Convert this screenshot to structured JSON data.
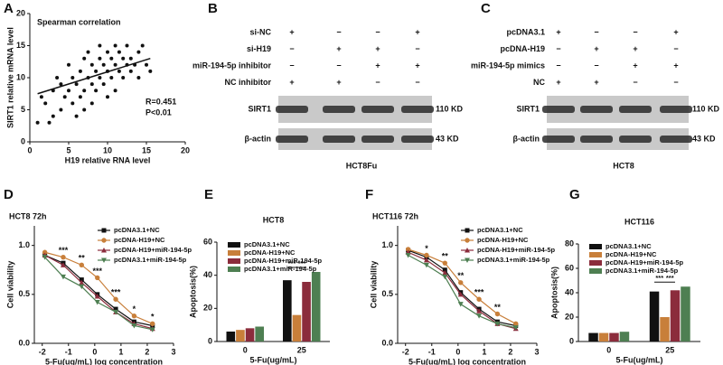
{
  "chart_data": [
    {
      "type": "scatter",
      "label": "A",
      "title": "Spearman correlation",
      "x_label": "H19 relative RNA level",
      "y_label": "SIRT1 relative mRNA level",
      "annotations": [
        "R=0.451",
        "P<0.01"
      ],
      "color": "#111111",
      "x": [
        1,
        1.5,
        2,
        2.5,
        3,
        3,
        3.5,
        4,
        4,
        4.5,
        5,
        5,
        5.5,
        5.5,
        6,
        6,
        6.5,
        6.5,
        7,
        7,
        7,
        7.5,
        7.5,
        8,
        8,
        8,
        8.5,
        8.5,
        9,
        9,
        9,
        9.5,
        9.5,
        10,
        10,
        10,
        10.5,
        10.5,
        11,
        11,
        11,
        11.5,
        11.5,
        12,
        12,
        12.5,
        12.5,
        13,
        13,
        13.5,
        14,
        14,
        14.5,
        15,
        15.5
      ],
      "y": [
        3,
        7,
        6,
        3,
        8,
        4,
        10,
        9,
        5,
        7,
        8,
        12,
        6,
        10,
        9,
        4,
        11,
        7,
        13,
        8,
        5,
        10,
        14,
        9,
        6,
        12,
        11,
        8,
        13,
        10,
        15,
        9,
        12,
        11,
        7,
        14,
        10,
        13,
        12,
        15,
        8,
        11,
        14,
        10,
        13,
        12,
        15,
        11,
        13,
        12,
        14,
        10,
        15,
        12,
        11
      ],
      "fit": {
        "x": [
          1,
          15.5
        ],
        "y": [
          7.5,
          13
        ]
      },
      "xlim": [
        0,
        20
      ],
      "xticks": [
        0,
        5,
        10,
        15,
        20
      ],
      "ylim": [
        0,
        20
      ],
      "yticks": [
        0,
        5,
        10,
        15,
        20
      ]
    },
    {
      "type": "line",
      "label": "D",
      "title": "HCT8 72h",
      "x_label": "5-Fu(ug/mL)  log concentration",
      "y_label": "Cell viability",
      "x": [
        -1.9,
        -1.2,
        -0.5,
        0.1,
        0.8,
        1.5,
        2.2
      ],
      "series": [
        {
          "name": "pcDNA3.1+NC",
          "color": "#111111",
          "values": [
            0.9,
            0.82,
            0.65,
            0.5,
            0.35,
            0.22,
            0.18
          ]
        },
        {
          "name": "pcDNA-H19+NC",
          "color": "#c87f3a",
          "values": [
            0.93,
            0.88,
            0.8,
            0.67,
            0.45,
            0.28,
            0.2
          ]
        },
        {
          "name": "pcDNA-H19+miR-194-5p",
          "color": "#8b2c3c",
          "values": [
            0.9,
            0.8,
            0.62,
            0.48,
            0.32,
            0.2,
            0.15
          ]
        },
        {
          "name": "pcDNA3.1+miR-194-5p",
          "color": "#4e7f52",
          "values": [
            0.88,
            0.68,
            0.58,
            0.42,
            0.32,
            0.18,
            0.14
          ]
        }
      ],
      "annotations": [
        {
          "x": -1.2,
          "text": "***"
        },
        {
          "x": -0.5,
          "text": "**"
        },
        {
          "x": 0.1,
          "text": "***"
        },
        {
          "x": 0.8,
          "text": "***"
        },
        {
          "x": 1.5,
          "text": "*"
        },
        {
          "x": 2.2,
          "text": "*"
        }
      ],
      "xlim": [
        -2.3,
        3
      ],
      "xticks": [
        -2,
        -1,
        0,
        1,
        2,
        3
      ],
      "ylim": [
        0,
        1.2
      ],
      "yticks": [
        {
          "value": 0,
          "label": "0.0"
        },
        {
          "value": 0.5,
          "label": "0.5"
        },
        {
          "value": 1,
          "label": "1.0"
        }
      ]
    },
    {
      "type": "bar",
      "label": "E",
      "title": "HCT8",
      "x_label": "5-Fu(ug/mL)",
      "y_label": "Apoptosis(%)",
      "categories": [
        "0",
        "25"
      ],
      "series": [
        {
          "name": "pcDNA3.1+NC",
          "color": "#111111",
          "values": [
            6,
            37
          ]
        },
        {
          "name": "pcDNA-H19+NC",
          "color": "#c87f3a",
          "values": [
            7,
            16
          ]
        },
        {
          "name": "pcDNA-H19+miR-194-5p",
          "color": "#8b2c3c",
          "values": [
            8,
            36
          ]
        },
        {
          "name": "pcDNA3.1+miR-194-5p",
          "color": "#4e7f52",
          "values": [
            9,
            42
          ]
        }
      ],
      "annotations": [
        "***",
        "***"
      ],
      "ylim": [
        0,
        60
      ],
      "yticks": [
        0,
        20,
        40,
        60
      ]
    },
    {
      "type": "line",
      "label": "F",
      "title": "HCT116 72h",
      "x_label": "5-Fu(ug/mL)  log concentration",
      "y_label": "Cell viability",
      "x": [
        -1.9,
        -1.2,
        -0.5,
        0.1,
        0.8,
        1.5,
        2.2
      ],
      "series": [
        {
          "name": "pcDNA3.1+NC",
          "color": "#111111",
          "values": [
            0.95,
            0.88,
            0.75,
            0.52,
            0.35,
            0.22,
            0.18
          ]
        },
        {
          "name": "pcDNA-H19+NC",
          "color": "#c87f3a",
          "values": [
            0.96,
            0.9,
            0.82,
            0.62,
            0.45,
            0.3,
            0.2
          ]
        },
        {
          "name": "pcDNA-H19+miR-194-5p",
          "color": "#8b2c3c",
          "values": [
            0.93,
            0.85,
            0.72,
            0.5,
            0.33,
            0.2,
            0.15
          ]
        },
        {
          "name": "pcDNA3.1+miR-194-5p",
          "color": "#4e7f52",
          "values": [
            0.9,
            0.8,
            0.68,
            0.4,
            0.28,
            0.2,
            0.16
          ]
        }
      ],
      "annotations": [
        {
          "x": -1.2,
          "text": "*"
        },
        {
          "x": -0.5,
          "text": "**"
        },
        {
          "x": 0.1,
          "text": "**"
        },
        {
          "x": 0.8,
          "text": "***"
        },
        {
          "x": 1.5,
          "text": "**"
        }
      ],
      "xlim": [
        -2.3,
        3
      ],
      "xticks": [
        -2,
        -1,
        0,
        1,
        2,
        3
      ],
      "ylim": [
        0,
        1.2
      ],
      "yticks": [
        {
          "value": 0,
          "label": "0.0"
        },
        {
          "value": 0.5,
          "label": "0.5"
        },
        {
          "value": 1,
          "label": "1.0"
        }
      ]
    },
    {
      "type": "bar",
      "label": "G",
      "title": "HCT116",
      "x_label": "5-Fu(ug/mL)",
      "y_label": "Apoptosis(%)",
      "categories": [
        "0",
        "25"
      ],
      "series": [
        {
          "name": "pcDNA3.1+NC",
          "color": "#111111",
          "values": [
            7,
            41
          ]
        },
        {
          "name": "pcDNA-H19+NC",
          "color": "#c87f3a",
          "values": [
            7,
            20
          ]
        },
        {
          "name": "pcDNA-H19+miR-194-5p",
          "color": "#8b2c3c",
          "values": [
            7,
            42
          ]
        },
        {
          "name": "pcDNA3.1+miR-194-5p",
          "color": "#4e7f52",
          "values": [
            8,
            45
          ]
        }
      ],
      "annotations": [
        "***",
        "***"
      ],
      "ylim": [
        0,
        80
      ],
      "yticks": [
        0,
        20,
        40,
        60,
        80
      ]
    }
  ],
  "blots": [
    {
      "label": "B",
      "cell_line": "HCT8Fu",
      "conditions": [
        {
          "name": "si-NC",
          "signs": [
            "+",
            "−",
            "−",
            "+"
          ]
        },
        {
          "name": "si-H19",
          "signs": [
            "−",
            "+",
            "+",
            "−"
          ]
        },
        {
          "name": "miR-194-5p inhibitor",
          "signs": [
            "−",
            "−",
            "+",
            "+"
          ]
        },
        {
          "name": "NC inhibitor",
          "signs": [
            "+",
            "+",
            "−",
            "−"
          ]
        }
      ],
      "bands": [
        {
          "name": "SIRT1",
          "size": "110 KD"
        },
        {
          "name": "β-actin",
          "size": "43 KD"
        }
      ]
    },
    {
      "label": "C",
      "cell_line": "HCT8",
      "conditions": [
        {
          "name": "pcDNA3.1",
          "signs": [
            "+",
            "−",
            "−",
            "+"
          ]
        },
        {
          "name": "pcDNA-H19",
          "signs": [
            "−",
            "+",
            "+",
            "−"
          ]
        },
        {
          "name": "miR-194-5p mimics",
          "signs": [
            "−",
            "−",
            "+",
            "+"
          ]
        },
        {
          "name": "NC",
          "signs": [
            "+",
            "+",
            "−",
            "−"
          ]
        }
      ],
      "bands": [
        {
          "name": "SIRT1",
          "size": "110 KD"
        },
        {
          "name": "β-actin",
          "size": "43 KD"
        }
      ]
    }
  ]
}
